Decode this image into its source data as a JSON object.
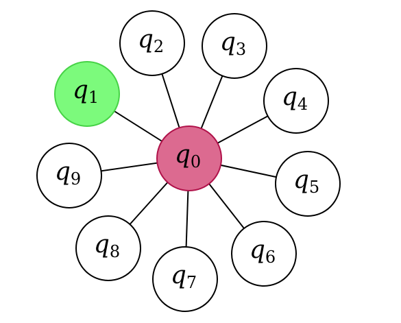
{
  "diagram": {
    "center": {
      "id": "q0",
      "label": "q",
      "sub": "0",
      "fill": "#dc6a90",
      "stroke": "#b0124a"
    },
    "highlight": {
      "fill": "#7cfa7c",
      "stroke": "#46d246"
    },
    "default_node": {
      "fill": "#ffffff",
      "stroke": "#000000"
    },
    "nodes": [
      {
        "id": "q1",
        "label": "q",
        "sub": "1",
        "highlighted": true
      },
      {
        "id": "q2",
        "label": "q",
        "sub": "2",
        "highlighted": false
      },
      {
        "id": "q3",
        "label": "q",
        "sub": "3",
        "highlighted": false
      },
      {
        "id": "q4",
        "label": "q",
        "sub": "4",
        "highlighted": false
      },
      {
        "id": "q5",
        "label": "q",
        "sub": "5",
        "highlighted": false
      },
      {
        "id": "q6",
        "label": "q",
        "sub": "6",
        "highlighted": false
      },
      {
        "id": "q7",
        "label": "q",
        "sub": "7",
        "highlighted": false
      },
      {
        "id": "q8",
        "label": "q",
        "sub": "8",
        "highlighted": false
      },
      {
        "id": "q9",
        "label": "q",
        "sub": "9",
        "highlighted": false
      }
    ],
    "edges": [
      [
        "q0",
        "q1"
      ],
      [
        "q0",
        "q2"
      ],
      [
        "q0",
        "q3"
      ],
      [
        "q0",
        "q4"
      ],
      [
        "q0",
        "q5"
      ],
      [
        "q0",
        "q6"
      ],
      [
        "q0",
        "q7"
      ],
      [
        "q0",
        "q8"
      ],
      [
        "q0",
        "q9"
      ]
    ]
  }
}
